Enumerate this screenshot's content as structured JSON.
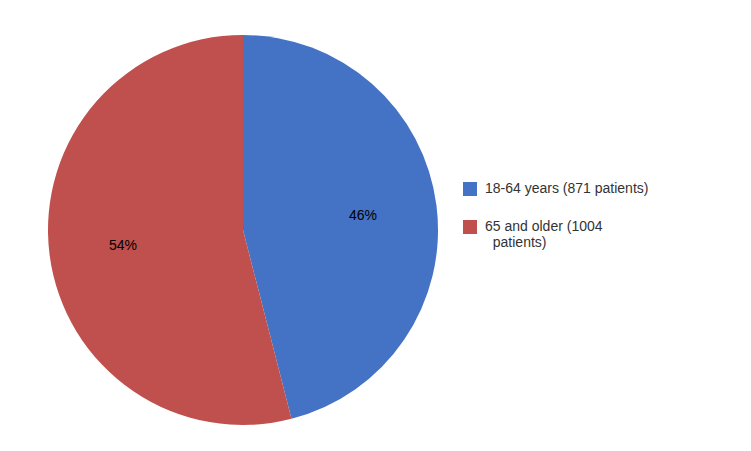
{
  "chart_data": {
    "type": "pie",
    "categories": [
      "18-64 years (871 patients)",
      "65 and older (1004\n  patients)"
    ],
    "values": [
      46,
      54
    ],
    "value_labels": [
      "46%",
      "54%"
    ],
    "colors": [
      "#4472C4",
      "#C0504D"
    ],
    "data_labels": true,
    "legend": "right"
  }
}
